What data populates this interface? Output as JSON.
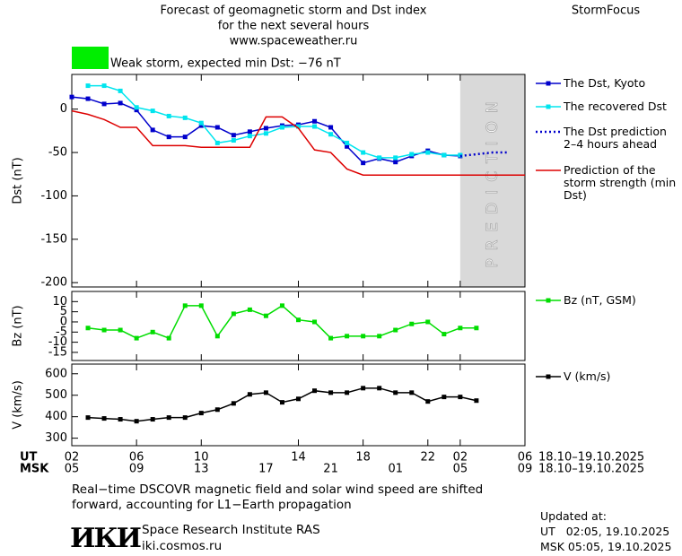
{
  "header": {
    "title": "Forecast of geomagnetic storm and Dst index",
    "subtitle": "for the next several hours",
    "source": "www.spaceweather.ru",
    "brand": "StormFocus"
  },
  "chart_data": [
    {
      "type": "line",
      "ylabel": "Dst (nT)",
      "ylim": [
        -205,
        40
      ],
      "yticks": [
        0,
        -50,
        -100,
        -150,
        -200
      ],
      "xlim": [
        0,
        28
      ],
      "annotation": "Weak storm, expected min Dst: −76 nT",
      "annotation_color": "#00ee00",
      "prediction_region": [
        24,
        28
      ],
      "prediction_label": "PREDICTION",
      "x": [
        0,
        1,
        2,
        3,
        4,
        5,
        6,
        7,
        8,
        9,
        10,
        11,
        12,
        13,
        14,
        15,
        16,
        17,
        18,
        19,
        20,
        21,
        22,
        23,
        24
      ],
      "series": [
        {
          "name": "The Dst, Kyoto",
          "color": "#0000cc",
          "marker": "square",
          "values": [
            14,
            12,
            6,
            7,
            -1,
            -24,
            -32,
            -32,
            -19,
            -21,
            -30,
            -26,
            -22,
            -19,
            -18,
            -14,
            -21,
            -43,
            -62,
            -57,
            -61,
            -54,
            -48,
            -53,
            -54
          ]
        },
        {
          "name": "The recovered Dst",
          "color": "#00e5ee",
          "marker": "square",
          "values": [
            null,
            27,
            27,
            21,
            2,
            -2,
            -8,
            -10,
            -16,
            -39,
            -36,
            -31,
            -28,
            -21,
            -20,
            -20,
            -29,
            -39,
            -50,
            -56,
            -56,
            -52,
            -50,
            -53,
            -53
          ]
        },
        {
          "name": "The Dst prediction 2–4 hours ahead",
          "color": "#0000cc",
          "marker": "none",
          "dash": true,
          "x": [
            24,
            25,
            26,
            27
          ],
          "values": [
            -54,
            -52,
            -50,
            -50
          ]
        },
        {
          "name": "Prediction of the storm strength (min Dst)",
          "color": "#dd0000",
          "marker": "none",
          "x": [
            0,
            1,
            2,
            3,
            4,
            5,
            6,
            7,
            8,
            9,
            10,
            11,
            12,
            13,
            14,
            15,
            16,
            17,
            18,
            28
          ],
          "values": [
            -2,
            -6,
            -12,
            -21,
            -21,
            -42,
            -42,
            -42,
            -44,
            -44,
            -44,
            -44,
            -9,
            -9,
            -22,
            -47,
            -50,
            -69,
            -76,
            -76
          ]
        }
      ]
    },
    {
      "type": "line",
      "ylabel": "Bz (nT)",
      "ylim": [
        -19,
        15
      ],
      "yticks": [
        10,
        5,
        0,
        -5,
        -10,
        -15
      ],
      "xlim": [
        0,
        28
      ],
      "x": [
        1,
        2,
        3,
        4,
        5,
        6,
        7,
        8,
        9,
        10,
        11,
        12,
        13,
        14,
        15,
        16,
        17,
        18,
        19,
        20,
        21,
        22,
        23,
        24,
        25
      ],
      "series": [
        {
          "name": "Bz (nT, GSM)",
          "color": "#00dd00",
          "marker": "square",
          "values": [
            -3,
            -4,
            -4,
            -8,
            -5,
            -8,
            8,
            8,
            -7,
            4,
            6,
            3,
            8,
            1,
            0,
            -8,
            -7,
            -7,
            -7,
            -4,
            -1,
            0,
            -6,
            -3,
            -3
          ]
        }
      ]
    },
    {
      "type": "line",
      "ylabel": "V (km/s)",
      "ylim": [
        265,
        645
      ],
      "yticks": [
        600,
        500,
        400,
        300
      ],
      "xlim": [
        0,
        28
      ],
      "x": [
        1,
        2,
        3,
        4,
        5,
        6,
        7,
        8,
        9,
        10,
        11,
        12,
        13,
        14,
        15,
        16,
        17,
        18,
        19,
        20,
        21,
        22,
        23,
        24,
        25
      ],
      "series": [
        {
          "name": "V (km/s)",
          "color": "#000000",
          "marker": "square",
          "values": [
            396,
            392,
            388,
            379,
            388,
            396,
            396,
            417,
            433,
            462,
            504,
            512,
            467,
            483,
            521,
            512,
            512,
            533,
            533,
            512,
            512,
            471,
            492,
            492,
            475
          ]
        }
      ],
      "xlabel": "UT",
      "x2label": "MSK",
      "date_range": "18.10–19.10.2025",
      "date_range2": "18.10–19.10.2025",
      "xticks": [
        {
          "value": 0,
          "label": "02"
        },
        {
          "value": 4,
          "label": "06"
        },
        {
          "value": 8,
          "label": "10"
        },
        14,
        18,
        22,
        {
          "value": 24,
          "label": "02"
        },
        {
          "value": 28,
          "label": "06"
        }
      ],
      "x2ticks": [
        {
          "value": 0,
          "label": "05"
        },
        {
          "value": 4,
          "label": "09"
        },
        {
          "value": 8,
          "label": "13"
        },
        {
          "value": 12,
          "label": "17"
        },
        {
          "value": 16,
          "label": "21"
        },
        {
          "value": 20,
          "label": "01"
        },
        {
          "value": 24,
          "label": "05"
        },
        {
          "value": 28,
          "label": "09"
        }
      ]
    }
  ],
  "footer": {
    "note": "Real−time DSCOVR magnetic field and solar wind speed are shifted forward, accounting for L1−Earth propagation",
    "logo": "ИКИ",
    "institute": "Space Research Institute RAS",
    "site": "iki.cosmos.ru",
    "updated": "Updated at:",
    "updated_ut": "UT   02:05, 19.10.2025",
    "updated_msk": "MSK 05:05, 19.10.2025"
  }
}
